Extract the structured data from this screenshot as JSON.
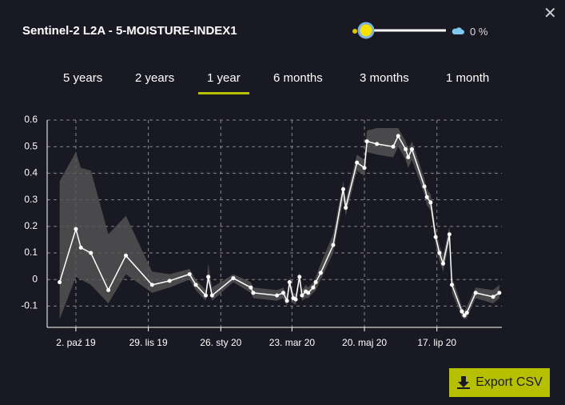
{
  "header": {
    "title": "Sentinel-2 L2A - 5-MOISTURE-INDEX1",
    "cloud_coverage": "0 %"
  },
  "tabs": [
    "5 years",
    "2 years",
    "1 year",
    "6 months",
    "3 months",
    "1 month"
  ],
  "active_tab": 2,
  "button": "Export CSV",
  "chart_data": {
    "type": "line",
    "x": [
      "2019-09-19",
      "2019-10-02",
      "2019-10-06",
      "2019-10-14",
      "2019-10-28",
      "2019-11-11",
      "2019-12-02",
      "2019-12-16",
      "2020-01-01",
      "2020-01-06",
      "2020-01-14",
      "2020-01-16",
      "2020-01-19",
      "2020-02-05",
      "2020-02-19",
      "2020-02-21",
      "2020-03-11",
      "2020-03-16",
      "2020-03-19",
      "2020-03-21",
      "2020-03-24",
      "2020-03-26",
      "2020-03-29",
      "2020-03-31",
      "2020-04-03",
      "2020-04-05",
      "2020-04-09",
      "2020-04-11",
      "2020-04-15",
      "2020-04-25",
      "2020-05-03",
      "2020-05-05",
      "2020-05-14",
      "2020-05-20",
      "2020-05-22",
      "2020-05-30",
      "2020-06-12",
      "2020-06-16",
      "2020-06-22",
      "2020-06-24",
      "2020-06-27",
      "2020-07-07",
      "2020-07-09",
      "2020-07-12",
      "2020-07-16",
      "2020-07-19",
      "2020-07-22",
      "2020-07-27",
      "2020-07-29",
      "2020-08-06",
      "2020-08-08",
      "2020-08-10",
      "2020-08-17",
      "2020-08-31",
      "2020-09-05"
    ],
    "values": [
      -0.01,
      0.19,
      0.12,
      0.1,
      -0.04,
      0.09,
      -0.02,
      -0.005,
      0.02,
      -0.02,
      -0.06,
      0.01,
      -0.06,
      0.005,
      -0.03,
      -0.05,
      -0.06,
      -0.05,
      -0.08,
      -0.01,
      -0.07,
      -0.075,
      0.01,
      -0.06,
      -0.045,
      -0.05,
      -0.03,
      -0.01,
      0.025,
      0.13,
      0.34,
      0.27,
      0.44,
      0.42,
      0.52,
      0.51,
      0.5,
      0.54,
      0.49,
      0.46,
      0.49,
      0.35,
      0.31,
      0.29,
      0.16,
      0.1,
      0.06,
      0.17,
      -0.02,
      -0.12,
      -0.135,
      -0.125,
      -0.05,
      -0.065,
      -0.05
    ],
    "band_low": [
      -0.15,
      0.01,
      0.0,
      -0.02,
      -0.09,
      0.02,
      -0.05,
      -0.03,
      0.0,
      -0.04,
      -0.08,
      -0.01,
      -0.08,
      -0.01,
      -0.05,
      -0.07,
      -0.08,
      -0.07,
      -0.1,
      -0.03,
      -0.09,
      -0.095,
      -0.01,
      -0.08,
      -0.07,
      -0.07,
      -0.05,
      -0.04,
      0.0,
      0.1,
      0.3,
      0.24,
      0.41,
      0.39,
      0.48,
      0.47,
      0.46,
      0.5,
      0.45,
      0.42,
      0.45,
      0.32,
      0.28,
      0.26,
      0.13,
      0.07,
      0.03,
      0.14,
      -0.05,
      -0.14,
      -0.15,
      -0.145,
      -0.07,
      -0.09,
      -0.07
    ],
    "band_high": [
      0.37,
      0.48,
      0.42,
      0.41,
      0.17,
      0.24,
      0.03,
      0.02,
      0.04,
      0.0,
      -0.04,
      0.06,
      -0.03,
      0.02,
      -0.01,
      -0.03,
      -0.04,
      -0.03,
      -0.06,
      0.01,
      -0.05,
      -0.055,
      0.03,
      -0.04,
      -0.02,
      -0.03,
      -0.01,
      0.01,
      0.06,
      0.17,
      0.37,
      0.3,
      0.47,
      0.45,
      0.56,
      0.57,
      0.57,
      0.57,
      0.52,
      0.49,
      0.52,
      0.38,
      0.34,
      0.32,
      0.19,
      0.13,
      0.09,
      0.2,
      0.01,
      -0.1,
      -0.12,
      -0.1,
      -0.03,
      -0.04,
      -0.02
    ],
    "color": "#ffffff",
    "band_color": "#555555",
    "xlim": [
      "2019-09-09",
      "2020-09-07"
    ],
    "xticks": [
      {
        "value": "2019-10-02",
        "label": "2. paź 19"
      },
      {
        "value": "2019-11-29",
        "label": "29. lis 19"
      },
      {
        "value": "2020-01-26",
        "label": "26. sty 20"
      },
      {
        "value": "2020-03-23",
        "label": "23. mar 20"
      },
      {
        "value": "2020-05-20",
        "label": "20. maj 20"
      },
      {
        "value": "2020-07-17",
        "label": "17. lip 20"
      }
    ],
    "ylim": [
      -0.18,
      0.6
    ],
    "yticks": [
      0.6,
      0.5,
      0.4,
      0.3,
      0.2,
      0.1,
      0,
      -0.1
    ],
    "grid": true
  }
}
